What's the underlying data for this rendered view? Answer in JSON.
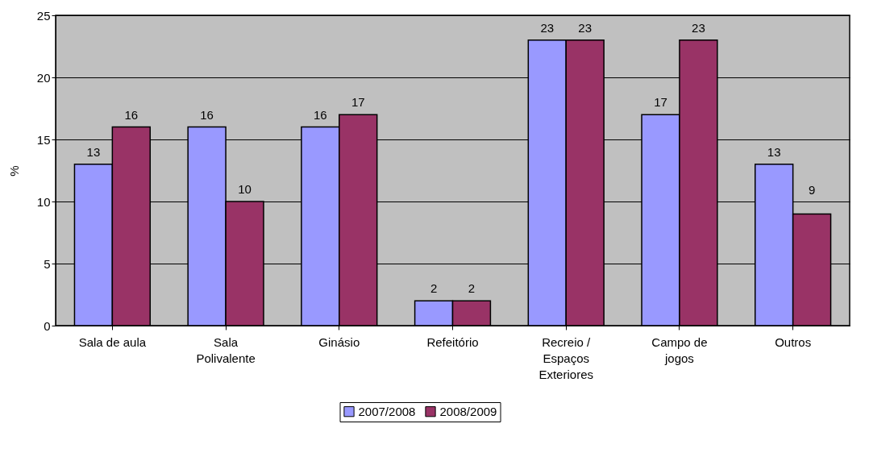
{
  "chart_data": {
    "type": "bar",
    "ylabel": "%",
    "categories": [
      "Sala de aula",
      "Sala\nPolivalente",
      "Ginásio",
      "Refeitório",
      "Recreio /\nEspaços\nExteriores",
      "Campo de\njogos",
      "Outros"
    ],
    "series": [
      {
        "name": "2007/2008",
        "color": "#9999ff",
        "values": [
          13,
          16,
          16,
          2,
          23,
          17,
          13
        ]
      },
      {
        "name": "2008/2009",
        "color": "#993366",
        "values": [
          16,
          10,
          17,
          2,
          23,
          23,
          9
        ]
      }
    ],
    "ylim": [
      0,
      25
    ],
    "yticks": [
      0,
      5,
      10,
      15,
      20,
      25
    ],
    "grid": "y",
    "legend": "bottom",
    "data_labels": true
  }
}
